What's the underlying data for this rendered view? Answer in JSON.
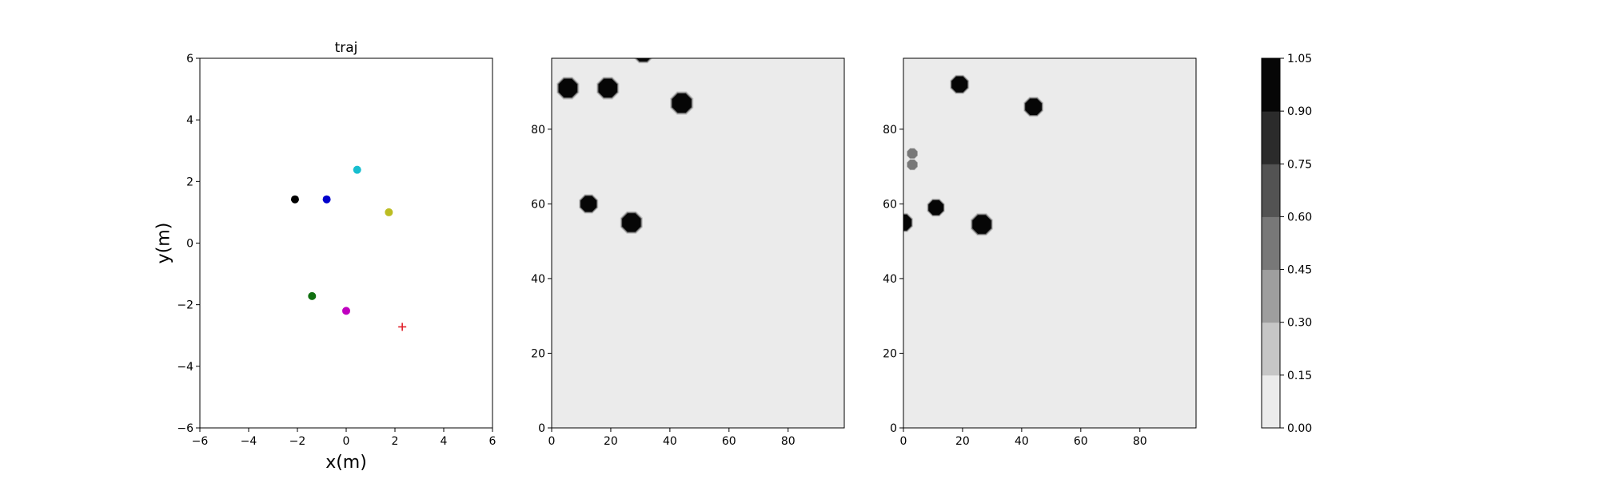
{
  "chart_data": [
    {
      "type": "scatter",
      "title": "traj",
      "xlabel": "x(m)",
      "ylabel": "y(m)",
      "xlim": [
        -6,
        6
      ],
      "ylim": [
        -6,
        6
      ],
      "xticks": [
        -6,
        -4,
        -2,
        0,
        2,
        4,
        6
      ],
      "yticks": [
        -6,
        -4,
        -2,
        0,
        2,
        4,
        6
      ],
      "grid": false,
      "points": [
        {
          "x": -2.1,
          "y": 1.42,
          "color": "#000000",
          "marker": "circle"
        },
        {
          "x": -0.8,
          "y": 1.42,
          "color": "#0000cc",
          "marker": "circle"
        },
        {
          "x": 0.45,
          "y": 2.38,
          "color": "#17becf",
          "marker": "circle"
        },
        {
          "x": 1.75,
          "y": 1.0,
          "color": "#bcbd22",
          "marker": "circle"
        },
        {
          "x": -1.4,
          "y": -1.72,
          "color": "#107010",
          "marker": "circle"
        },
        {
          "x": 0.0,
          "y": -2.2,
          "color": "#c000c0",
          "marker": "circle"
        },
        {
          "x": 2.3,
          "y": -2.72,
          "color": "#e0202a",
          "marker": "plus"
        }
      ]
    },
    {
      "type": "heatmap",
      "title": "",
      "xlim": [
        0,
        99
      ],
      "ylim": [
        0,
        99
      ],
      "xticks": [
        0,
        20,
        40,
        60,
        80
      ],
      "yticks": [
        0,
        20,
        40,
        60,
        80
      ],
      "background_value": 0.05,
      "blobs": [
        {
          "x": 5.5,
          "y": 91,
          "r": 3.4,
          "value": 1.0
        },
        {
          "x": 19,
          "y": 91,
          "r": 3.4,
          "value": 1.0
        },
        {
          "x": 31,
          "y": 100.5,
          "r": 3.2,
          "value": 1.0
        },
        {
          "x": 44,
          "y": 87,
          "r": 3.5,
          "value": 1.0
        },
        {
          "x": 12.5,
          "y": 60,
          "r": 2.9,
          "value": 1.0
        },
        {
          "x": 27,
          "y": 55,
          "r": 3.4,
          "value": 1.0
        }
      ]
    },
    {
      "type": "heatmap",
      "title": "",
      "xlim": [
        0,
        99
      ],
      "ylim": [
        0,
        99
      ],
      "xticks": [
        0,
        20,
        40,
        60,
        80
      ],
      "yticks": [
        0,
        20,
        40,
        60,
        80
      ],
      "background_value": 0.05,
      "blobs": [
        {
          "x": 19,
          "y": 92,
          "r": 2.9,
          "value": 1.0
        },
        {
          "x": 44,
          "y": 86,
          "r": 3.0,
          "value": 1.0
        },
        {
          "x": 3,
          "y": 73.5,
          "r": 1.8,
          "value": 0.5
        },
        {
          "x": 3,
          "y": 70.5,
          "r": 1.8,
          "value": 0.45
        },
        {
          "x": 11,
          "y": 59,
          "r": 2.7,
          "value": 1.0
        },
        {
          "x": 26.5,
          "y": 54.5,
          "r": 3.4,
          "value": 1.0
        },
        {
          "x": 0,
          "y": 55,
          "r": 2.9,
          "value": 0.95
        }
      ]
    }
  ],
  "colorbar": {
    "levels": [
      0.0,
      0.15,
      0.3,
      0.45,
      0.6,
      0.75,
      0.9,
      1.05
    ],
    "labels": [
      "0.00",
      "0.15",
      "0.30",
      "0.45",
      "0.60",
      "0.75",
      "0.90",
      "1.05"
    ],
    "colors": [
      "#ebebeb",
      "#c6c6c6",
      "#9e9e9e",
      "#787878",
      "#535353",
      "#2b2b2b",
      "#060606"
    ]
  }
}
